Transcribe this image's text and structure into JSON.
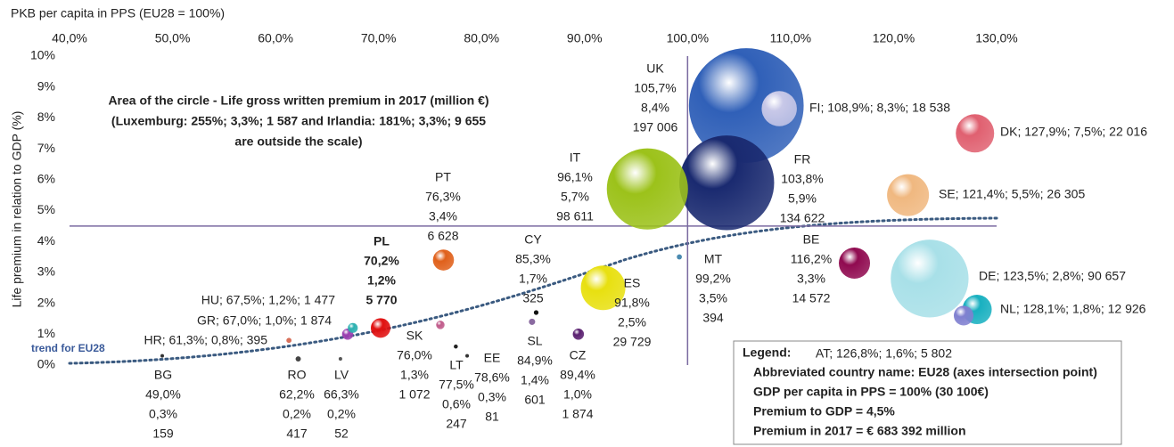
{
  "chart_data": {
    "type": "bubble",
    "xlabel": "PKB per capita in PPS (EU28 = 100%)",
    "ylabel": "Life premium in relation to GDP (%)",
    "xlim": [
      40,
      130
    ],
    "ylim": [
      0,
      10
    ],
    "xticks": [
      {
        "value": 40,
        "label": "40,0%"
      },
      {
        "value": 50,
        "label": "50,0%"
      },
      {
        "value": 60,
        "label": "60,0%"
      },
      {
        "value": 70,
        "label": "70,0%"
      },
      {
        "value": 80,
        "label": "80,0%"
      },
      {
        "value": 90,
        "label": "90,0%"
      },
      {
        "value": 100,
        "label": "100,0%"
      },
      {
        "value": 110,
        "label": "110,0%"
      },
      {
        "value": 120,
        "label": "120,0%"
      },
      {
        "value": 130,
        "label": "130,0%"
      }
    ],
    "yticks": [
      {
        "value": 0,
        "label": "0%"
      },
      {
        "value": 1,
        "label": "1%"
      },
      {
        "value": 2,
        "label": "2%"
      },
      {
        "value": 3,
        "label": "3%"
      },
      {
        "value": 4,
        "label": "4%"
      },
      {
        "value": 5,
        "label": "5%"
      },
      {
        "value": 6,
        "label": "6%"
      },
      {
        "value": 7,
        "label": "7%"
      },
      {
        "value": 8,
        "label": "8%"
      },
      {
        "value": 9,
        "label": "9%"
      },
      {
        "value": 10,
        "label": "10%"
      }
    ],
    "crosshair": {
      "x": 100,
      "y": 4.5
    },
    "annotation": [
      "Area of the circle - Life gross written premium in 2017 (million €)",
      "(Luxemburg: 255%; 3,3%; 1 587 and Irlandia: 181%; 3,3%; 9 655",
      "are outside the scale)"
    ],
    "trend_label": "trend for EU28",
    "legend": [
      "Legend:",
      "Abbreviated country name: EU28 (axes intersection point)",
      "GDP per capita in PPS = 100% (30 100€)",
      "Premium to GDP = 4,5%",
      "Premium in 2017 = € 683 392 million"
    ],
    "points": [
      {
        "x": 49.0,
        "y": 0.3,
        "size": 159,
        "color": "#333333",
        "labels": [
          "BG",
          "49,0%",
          "0,3%",
          "159"
        ]
      },
      {
        "x": 61.3,
        "y": 0.8,
        "size": 395,
        "color": "#d8705a",
        "labels": [
          "HR; 61,3%; 0,8%;  395"
        ]
      },
      {
        "x": 67.0,
        "y": 1.0,
        "size": 1874,
        "color": "#9a3fb0",
        "labels": [
          "GR; 67,0%; 1,0%;  1 874"
        ]
      },
      {
        "x": 67.5,
        "y": 1.2,
        "size": 1477,
        "color": "#2bb0b0",
        "labels": [
          "HU; 67,5%; 1,2%;  1 477"
        ]
      },
      {
        "x": 66.3,
        "y": 0.2,
        "size": 52,
        "color": "#555555",
        "labels": [
          "LV",
          "66,3%",
          "0,2%",
          "52"
        ]
      },
      {
        "x": 62.2,
        "y": 0.2,
        "size": 417,
        "color": "#444444",
        "labels": [
          "RO",
          "62,2%",
          "0,2%",
          "417"
        ]
      },
      {
        "x": 70.2,
        "y": 1.2,
        "size": 5770,
        "color": "#e01010",
        "labels": [
          "PL",
          "70,2%",
          "1,2%",
          "5 770"
        ]
      },
      {
        "x": 76.0,
        "y": 1.3,
        "size": 1072,
        "color": "#c05a8a",
        "labels": [
          "SK",
          "76,0%",
          "1,3%",
          "1 072"
        ]
      },
      {
        "x": 76.3,
        "y": 3.4,
        "size": 6628,
        "color": "#e0601a",
        "labels": [
          "PT",
          "76,3%",
          "3,4%",
          "6 628"
        ]
      },
      {
        "x": 77.5,
        "y": 0.6,
        "size": 247,
        "color": "#222222",
        "labels": [
          "LT",
          "77,5%",
          "0,6%",
          "247"
        ]
      },
      {
        "x": 78.6,
        "y": 0.3,
        "size": 81,
        "color": "#333333",
        "labels": [
          "EE",
          "78,6%",
          "0,3%",
          "81"
        ]
      },
      {
        "x": 85.3,
        "y": 1.7,
        "size": 325,
        "color": "#111111",
        "labels": [
          "CY",
          "85,3%",
          "1,7%",
          "325"
        ]
      },
      {
        "x": 84.9,
        "y": 1.4,
        "size": 601,
        "color": "#8a6aa0",
        "labels": [
          "SL",
          "84,9%",
          "1,4%",
          "601"
        ]
      },
      {
        "x": 89.4,
        "y": 1.0,
        "size": 1874,
        "color": "#5a2070",
        "labels": [
          "CZ",
          "89,4%",
          "1,0%",
          "1 874"
        ]
      },
      {
        "x": 91.8,
        "y": 2.5,
        "size": 29729,
        "color": "#e8e010",
        "labels": [
          "ES",
          "91,8%",
          "2,5%",
          "29 729"
        ]
      },
      {
        "x": 96.1,
        "y": 5.7,
        "size": 98611,
        "color": "#9cc21a",
        "labels": [
          "IT",
          "96,1%",
          "5,7%",
          "98 611"
        ]
      },
      {
        "x": 99.2,
        "y": 3.5,
        "size": 394,
        "color": "#4a8ab0",
        "labels": [
          "MT",
          "99,2%",
          "3,5%",
          "394"
        ]
      },
      {
        "x": 105.7,
        "y": 8.4,
        "size": 197006,
        "color": "#3060b8",
        "labels": [
          "UK",
          "105,7%",
          "8,4%",
          "197 006"
        ]
      },
      {
        "x": 103.8,
        "y": 5.9,
        "size": 134622,
        "color": "#1a2a70",
        "labels": [
          "FR",
          "103,8%",
          "5,9%",
          "134 622"
        ]
      },
      {
        "x": 108.9,
        "y": 8.3,
        "size": 18538,
        "color": "#c8c8e8",
        "labels": [
          "FI; 108,9%; 8,3%;  18 538"
        ]
      },
      {
        "x": 127.9,
        "y": 7.5,
        "size": 22016,
        "color": "#e06070",
        "labels": [
          "DK; 127,9%; 7,5%;  22 016"
        ]
      },
      {
        "x": 121.4,
        "y": 5.5,
        "size": 26305,
        "color": "#f0b880",
        "labels": [
          "SE; 121,4%; 5,5%;  26 305"
        ]
      },
      {
        "x": 116.2,
        "y": 3.3,
        "size": 14572,
        "color": "#900a50",
        "labels": [
          "BE",
          "116,2%",
          "3,3%",
          "14 572"
        ]
      },
      {
        "x": 123.5,
        "y": 2.8,
        "size": 90657,
        "color": "#a8e0e8",
        "labels": [
          "DE; 123,5%; 2,8%;  90 657"
        ]
      },
      {
        "x": 128.1,
        "y": 1.8,
        "size": 12926,
        "color": "#18b0c0",
        "labels": [
          "NL; 128,1%; 1,8%;  12 926"
        ]
      },
      {
        "x": 126.8,
        "y": 1.6,
        "size": 5802,
        "color": "#8080d0",
        "labels": [
          "AT; 126,8%; 1,6%;  5 802"
        ]
      }
    ]
  }
}
